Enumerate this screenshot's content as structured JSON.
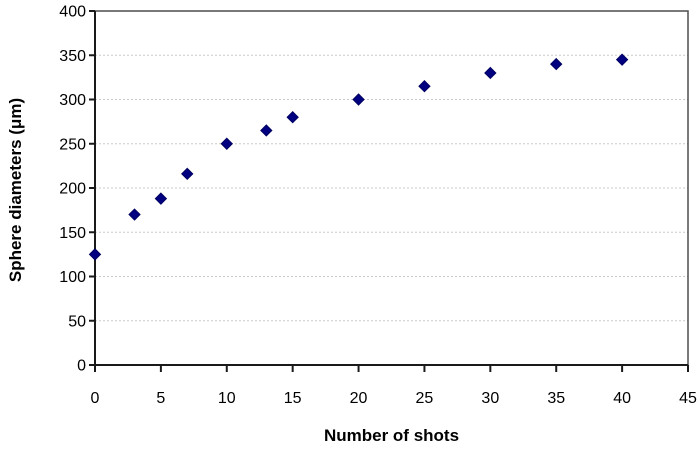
{
  "chart_data": {
    "type": "scatter",
    "title": "",
    "xlabel": "Number of shots",
    "ylabel": "Sphere diameters (μm)",
    "x": [
      0,
      3,
      5,
      7,
      10,
      13,
      15,
      20,
      25,
      30,
      35,
      40
    ],
    "y": [
      125,
      170,
      188,
      216,
      250,
      265,
      280,
      300,
      315,
      330,
      340,
      345
    ],
    "xlim": [
      0,
      45
    ],
    "ylim": [
      0,
      400
    ],
    "xticks": [
      0,
      5,
      10,
      15,
      20,
      25,
      30,
      35,
      40,
      45
    ],
    "yticks": [
      0,
      50,
      100,
      150,
      200,
      250,
      300,
      350,
      400
    ],
    "grid": "horizontal-dotted",
    "legend_position": "none",
    "marker": "diamond",
    "colors": {
      "marker_fill": "#000080",
      "marker_edge": "#000060",
      "axis_line": "#1a1a1a",
      "plot_border": "#4d4d4d",
      "gridline": "#c9c9c9",
      "tick_label": "#000000",
      "background": "#ffffff"
    }
  }
}
